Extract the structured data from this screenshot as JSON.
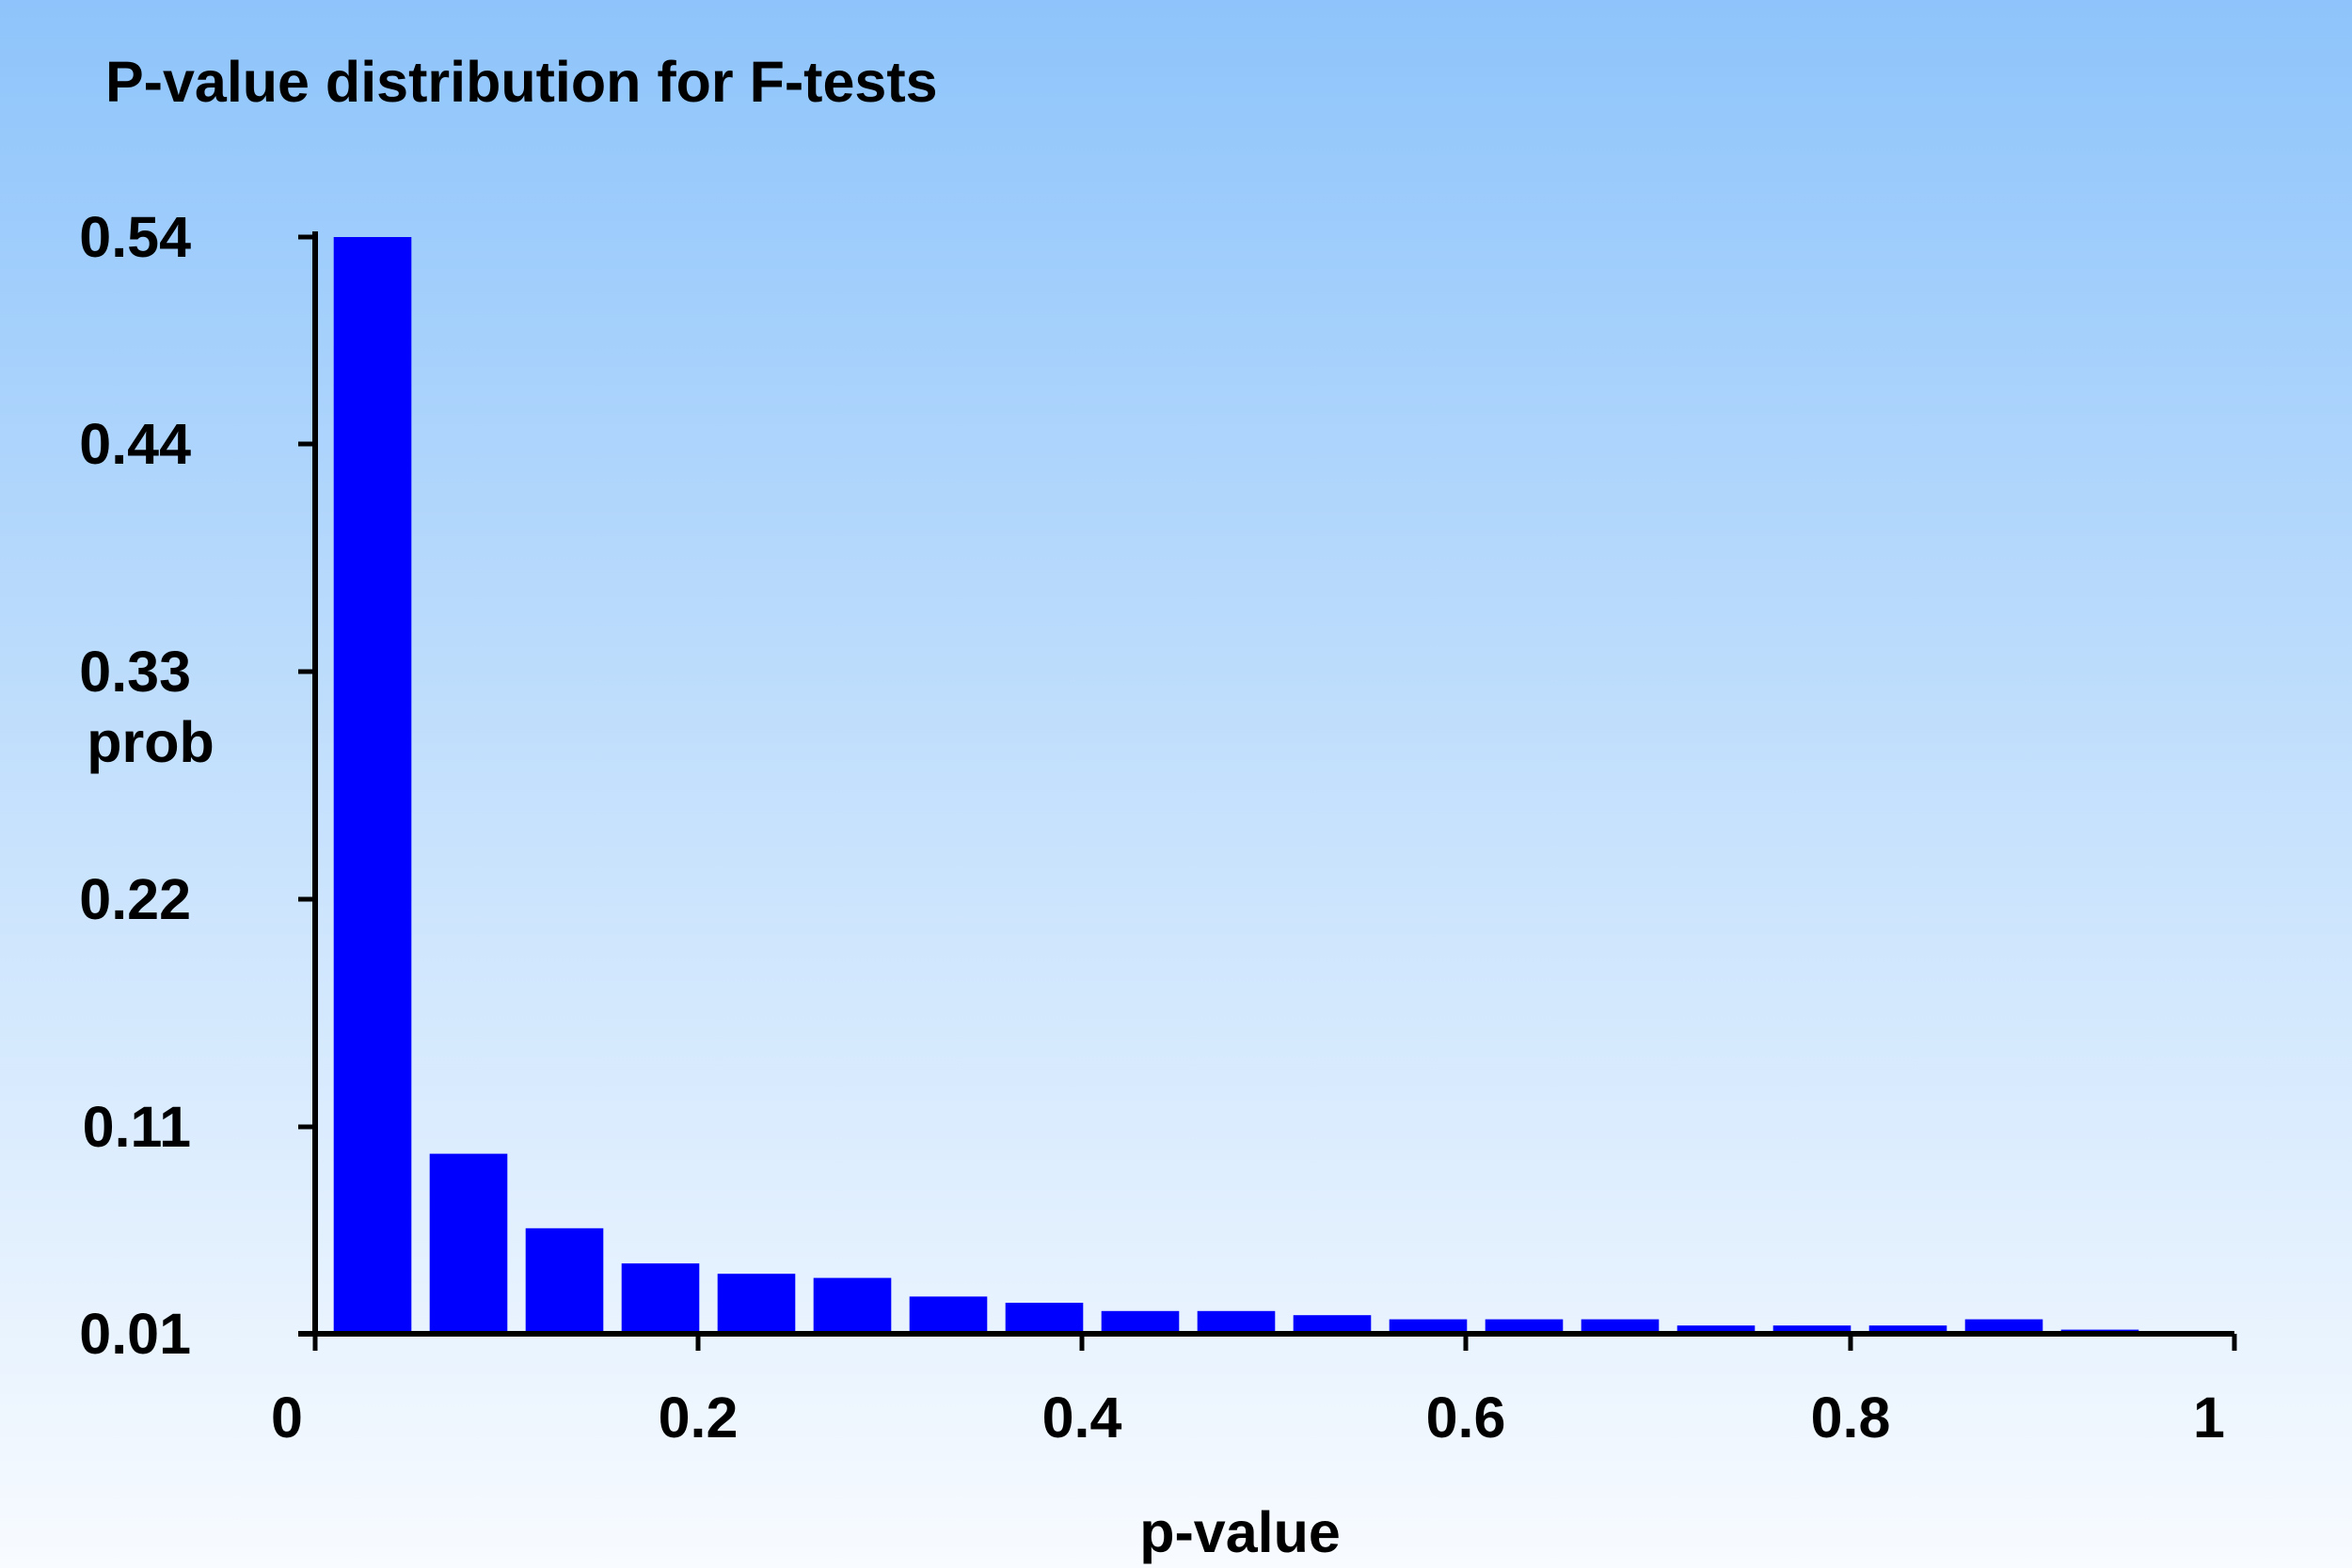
{
  "chart_data": {
    "type": "bar",
    "title": "P-value distribution for F-tests",
    "xlabel": "p-value",
    "ylabel": "prob",
    "xlim": [
      0,
      1
    ],
    "ylim": [
      0.01,
      0.54
    ],
    "x_ticks": [
      0,
      0.2,
      0.4,
      0.6,
      0.8,
      1
    ],
    "x_tick_labels": [
      "0",
      "0.2",
      "0.4",
      "0.6",
      "0.8",
      "1"
    ],
    "y_ticks": [
      0.01,
      0.11,
      0.22,
      0.33,
      0.44,
      0.54
    ],
    "y_tick_labels": [
      "0.01",
      "0.11",
      "0.22",
      "0.33",
      "0.44",
      "0.54"
    ],
    "bin_width": 0.05,
    "bins": [
      [
        0.0,
        0.05
      ],
      [
        0.05,
        0.1
      ],
      [
        0.1,
        0.15
      ],
      [
        0.15,
        0.2
      ],
      [
        0.2,
        0.25
      ],
      [
        0.25,
        0.3
      ],
      [
        0.3,
        0.35
      ],
      [
        0.35,
        0.4
      ],
      [
        0.4,
        0.45
      ],
      [
        0.45,
        0.5
      ],
      [
        0.5,
        0.55
      ],
      [
        0.55,
        0.6
      ],
      [
        0.6,
        0.65
      ],
      [
        0.65,
        0.7
      ],
      [
        0.7,
        0.75
      ],
      [
        0.75,
        0.8
      ],
      [
        0.8,
        0.85
      ],
      [
        0.85,
        0.9
      ],
      [
        0.9,
        0.95
      ]
    ],
    "values": [
      0.54,
      0.097,
      0.061,
      0.044,
      0.039,
      0.037,
      0.028,
      0.025,
      0.021,
      0.021,
      0.019,
      0.017,
      0.017,
      0.017,
      0.014,
      0.014,
      0.014,
      0.017,
      0.012
    ],
    "bar_color": "#0000ff",
    "grid": false,
    "legend": "none"
  }
}
